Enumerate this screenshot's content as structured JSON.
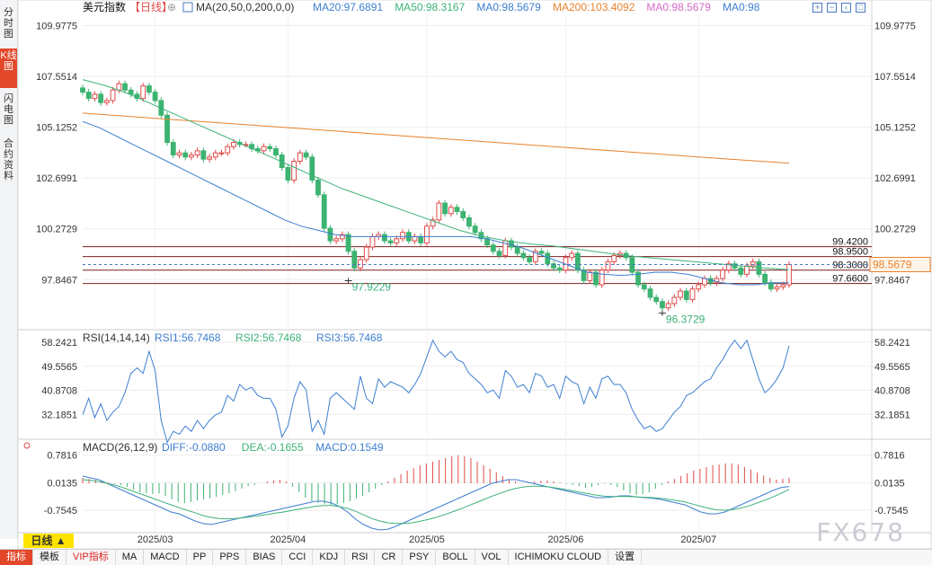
{
  "sidebar": {
    "items": [
      {
        "label": "分时图",
        "active": false
      },
      {
        "label": "K线图",
        "active": true
      },
      {
        "label": "闪电图",
        "active": false
      },
      {
        "label": "合约资料",
        "active": false
      }
    ]
  },
  "header": {
    "symbol": "美元指数",
    "period_tag": "【日线】",
    "ma_label": "MA(20,50,0,200,0,0)",
    "ma_values": [
      {
        "text": "MA20:97.6891",
        "color": "#3d7fd1"
      },
      {
        "text": "MA50:98.3167",
        "color": "#3db37a"
      },
      {
        "text": "MA0:98.5679",
        "color": "#3d7fd1"
      },
      {
        "text": "MA200:103.4092",
        "color": "#e8822e"
      },
      {
        "text": "MA0:98.5679",
        "color": "#d56ac5"
      },
      {
        "text": "MA0:98",
        "color": "#3d7fd1"
      }
    ]
  },
  "rsi_header": {
    "label": "RSI(14,14,14)",
    "values": [
      {
        "text": "RSI1:56.7468",
        "color": "#3d7fd1"
      },
      {
        "text": "RSI2:56.7468",
        "color": "#3db37a"
      },
      {
        "text": "RSI3:56.7468",
        "color": "#3d7fd1"
      }
    ]
  },
  "macd_header": {
    "label": "MACD(26,12,9)",
    "values": [
      {
        "text": "DIFF:-0.0880",
        "color": "#3d7fd1"
      },
      {
        "text": "DEA:-0.1655",
        "color": "#3db37a"
      },
      {
        "text": "MACD:0.1549",
        "color": "#3d7fd1"
      }
    ]
  },
  "chart_data": {
    "type": "candlestick",
    "price_ticks": [
      "109.9775",
      "107.5514",
      "105.1252",
      "102.6991",
      "100.2729",
      "97.8467"
    ],
    "price_range": [
      95.5,
      110.6
    ],
    "rsi_ticks": [
      "58.2421",
      "49.5565",
      "40.8708",
      "32.1851"
    ],
    "rsi_range": [
      23.5,
      62.5
    ],
    "macd_ticks": [
      "0.7816",
      "0.0135",
      "-0.7545"
    ],
    "macd_range": [
      -1.35,
      1.2
    ],
    "x_labels": [
      {
        "text": "2025/03",
        "index": 12
      },
      {
        "text": "2025/04",
        "index": 34
      },
      {
        "text": "2025/05",
        "index": 57
      },
      {
        "text": "2025/06",
        "index": 80
      },
      {
        "text": "2025/07",
        "index": 102
      }
    ],
    "current_price": "98.5679",
    "hlines": [
      {
        "value": 99.42,
        "label": "99.4200"
      },
      {
        "value": 98.95,
        "label": "98.9500"
      },
      {
        "value": 98.3,
        "label": "98.3000"
      },
      {
        "value": 97.66,
        "label": "97.6600"
      }
    ],
    "annotations": [
      {
        "text": "97.9229",
        "index": 44,
        "value": 97.9229
      },
      {
        "text": "96.3729",
        "index": 96,
        "value": 96.3729
      }
    ],
    "closes": [
      106.8,
      106.5,
      106.7,
      106.3,
      106.4,
      106.9,
      107.2,
      106.9,
      106.7,
      106.5,
      107.1,
      106.8,
      106.4,
      105.7,
      104.4,
      103.8,
      103.9,
      103.7,
      103.8,
      104.0,
      103.6,
      103.7,
      103.9,
      103.9,
      104.2,
      104.4,
      104.3,
      104.3,
      104.1,
      104.0,
      104.2,
      104.1,
      103.8,
      103.2,
      102.6,
      103.5,
      103.9,
      103.7,
      102.6,
      101.9,
      100.3,
      99.7,
      99.8,
      100.0,
      99.2,
      98.4,
      98.8,
      99.4,
      99.9,
      100.0,
      99.7,
      99.6,
      99.8,
      100.1,
      99.7,
      99.9,
      99.6,
      100.4,
      100.7,
      101.5,
      101.0,
      101.3,
      101.1,
      100.8,
      100.4,
      100.1,
      99.8,
      99.5,
      99.2,
      99.0,
      99.7,
      99.4,
      99.1,
      98.9,
      98.7,
      99.2,
      99.1,
      98.6,
      98.4,
      98.3,
      98.9,
      99.1,
      98.3,
      97.8,
      98.2,
      97.6,
      98.3,
      98.7,
      99.0,
      99.1,
      98.9,
      98.2,
      97.6,
      97.4,
      97.0,
      96.8,
      96.5,
      96.7,
      97.0,
      97.3,
      96.9,
      97.4,
      97.6,
      97.9,
      97.7,
      97.9,
      98.3,
      98.6,
      98.4,
      98.1,
      98.5,
      98.7,
      98.1,
      97.7,
      97.4,
      97.5,
      97.6,
      98.57
    ],
    "ma20": [
      105.4,
      105.1,
      104.7,
      104.3,
      103.9,
      103.5,
      103.1,
      102.7,
      102.3,
      101.9,
      101.5,
      101.1,
      100.7,
      100.4,
      100.2,
      100.0,
      99.9,
      99.9,
      99.9,
      99.9,
      99.9,
      99.9,
      99.9,
      99.9,
      99.8,
      99.6,
      99.4,
      99.1,
      98.8,
      98.5,
      98.2,
      98.1,
      98.05,
      98.1,
      98.2,
      98.2,
      98.1,
      97.9,
      97.7,
      97.6,
      97.6,
      97.7,
      97.69
    ],
    "ma50": [
      107.4,
      107.1,
      106.7,
      106.2,
      105.7,
      105.2,
      104.7,
      104.2,
      103.7,
      103.2,
      102.7,
      102.2,
      101.8,
      101.4,
      101.0,
      100.6,
      100.2,
      99.9,
      99.7,
      99.55,
      99.45,
      99.3,
      99.15,
      99.0,
      98.9,
      98.8,
      98.7,
      98.6,
      98.5,
      98.4,
      98.32
    ],
    "ma200": [
      105.8,
      105.6,
      105.4,
      105.2,
      105.0,
      104.8,
      104.6,
      104.4,
      104.2,
      104.0,
      103.8,
      103.6,
      103.41
    ],
    "rsi": [
      32,
      38,
      31,
      36,
      30,
      33,
      35,
      40,
      47,
      49,
      47,
      55,
      48,
      30,
      22,
      26,
      25,
      28,
      26,
      30,
      27,
      30,
      32,
      33,
      39,
      37,
      43,
      41,
      42,
      39,
      38,
      38,
      34,
      24,
      28,
      38,
      44,
      41,
      26,
      30,
      25,
      38,
      40,
      38,
      36,
      34,
      46,
      38,
      36,
      45,
      42,
      44,
      43,
      42,
      40,
      43,
      47,
      53,
      59,
      55,
      53,
      55,
      52,
      51,
      47,
      45,
      43,
      40,
      41,
      38,
      48,
      46,
      42,
      43,
      40,
      47,
      46,
      42,
      43,
      38,
      46,
      44,
      43,
      36,
      42,
      38,
      45,
      46,
      43,
      43,
      40,
      34,
      30,
      27,
      28,
      26,
      27,
      30,
      33,
      35,
      39,
      40,
      42,
      44,
      45,
      49,
      52,
      56,
      59,
      56,
      59,
      52,
      45,
      40,
      42,
      45,
      49,
      57
    ],
    "macd_hist": [
      0.15,
      0.12,
      0.1,
      0.05,
      0.02,
      -0.02,
      -0.05,
      -0.1,
      -0.18,
      -0.25,
      -0.28,
      -0.3,
      -0.28,
      -0.35,
      -0.45,
      -0.52,
      -0.55,
      -0.52,
      -0.48,
      -0.45,
      -0.42,
      -0.38,
      -0.33,
      -0.28,
      -0.22,
      -0.15,
      -0.08,
      -0.05,
      0.0,
      0.05,
      0.08,
      0.1,
      0.05,
      -0.1,
      -0.25,
      -0.4,
      -0.5,
      -0.55,
      -0.58,
      -0.6,
      -0.58,
      -0.55,
      -0.5,
      -0.42,
      -0.35,
      -0.25,
      -0.15,
      -0.05,
      0.05,
      0.15,
      0.25,
      0.35,
      0.42,
      0.5,
      0.55,
      0.6,
      0.65,
      0.7,
      0.75,
      0.78,
      0.75,
      0.7,
      0.6,
      0.5,
      0.4,
      0.3,
      0.2,
      0.12,
      0.05,
      0.0,
      0.02,
      0.05,
      0.07,
      0.08,
      0.05,
      0.02,
      -0.02,
      -0.05,
      -0.08,
      -0.12,
      -0.1,
      -0.05,
      -0.02,
      -0.05,
      -0.1,
      -0.2,
      -0.28,
      -0.32,
      -0.3,
      -0.25,
      -0.15,
      -0.05,
      0.05,
      0.12,
      0.2,
      0.28,
      0.35,
      0.4,
      0.45,
      0.5,
      0.52,
      0.55,
      0.55,
      0.52,
      0.45,
      0.38,
      0.3,
      0.22,
      0.15,
      0.1,
      0.12,
      0.15
    ],
    "macd_diff": [
      0.2,
      0.15,
      0.1,
      0.0,
      -0.1,
      -0.2,
      -0.3,
      -0.4,
      -0.5,
      -0.6,
      -0.7,
      -0.8,
      -0.85,
      -0.95,
      -1.05,
      -1.12,
      -1.15,
      -1.1,
      -1.05,
      -1.0,
      -0.95,
      -0.9,
      -0.85,
      -0.8,
      -0.75,
      -0.7,
      -0.65,
      -0.6,
      -0.55,
      -0.5,
      -0.5,
      -0.55,
      -0.65,
      -0.8,
      -1.0,
      -1.15,
      -1.25,
      -1.3,
      -1.28,
      -1.2,
      -1.1,
      -1.0,
      -0.9,
      -0.8,
      -0.7,
      -0.6,
      -0.5,
      -0.4,
      -0.3,
      -0.2,
      -0.1,
      0.0,
      0.05,
      0.1,
      0.1,
      0.05,
      0.0,
      -0.05,
      -0.1,
      -0.15,
      -0.2,
      -0.25,
      -0.3,
      -0.35,
      -0.4,
      -0.4,
      -0.38,
      -0.35,
      -0.35,
      -0.38,
      -0.4,
      -0.42,
      -0.45,
      -0.5,
      -0.55,
      -0.6,
      -0.7,
      -0.8,
      -0.85,
      -0.85,
      -0.8,
      -0.7,
      -0.6,
      -0.5,
      -0.4,
      -0.3,
      -0.2,
      -0.12,
      -0.09
    ],
    "macd_dea": [
      0.1,
      0.08,
      0.05,
      0.0,
      -0.05,
      -0.12,
      -0.2,
      -0.28,
      -0.36,
      -0.44,
      -0.52,
      -0.6,
      -0.68,
      -0.75,
      -0.82,
      -0.9,
      -0.95,
      -0.98,
      -0.99,
      -0.98,
      -0.96,
      -0.93,
      -0.9,
      -0.87,
      -0.83,
      -0.8,
      -0.76,
      -0.72,
      -0.68,
      -0.64,
      -0.62,
      -0.62,
      -0.65,
      -0.7,
      -0.78,
      -0.88,
      -0.98,
      -1.05,
      -1.1,
      -1.12,
      -1.12,
      -1.1,
      -1.06,
      -1.01,
      -0.95,
      -0.88,
      -0.8,
      -0.72,
      -0.63,
      -0.54,
      -0.45,
      -0.36,
      -0.28,
      -0.2,
      -0.14,
      -0.1,
      -0.08,
      -0.08,
      -0.1,
      -0.13,
      -0.17,
      -0.21,
      -0.25,
      -0.29,
      -0.33,
      -0.36,
      -0.37,
      -0.37,
      -0.37,
      -0.38,
      -0.39,
      -0.4,
      -0.42,
      -0.45,
      -0.48,
      -0.52,
      -0.58,
      -0.64,
      -0.7,
      -0.74,
      -0.75,
      -0.73,
      -0.69,
      -0.63,
      -0.55,
      -0.47,
      -0.38,
      -0.28,
      -0.17
    ]
  },
  "toolbar": {
    "period_button": "日线 ▲",
    "items": [
      "指标",
      "模板",
      "VIP指标",
      "MA",
      "MACD",
      "PP",
      "PPS",
      "BIAS",
      "CCI",
      "KDJ",
      "RSI",
      "CR",
      "PSY",
      "BOLL",
      "VOL",
      "ICHIMOKU CLOUD",
      "设置"
    ]
  },
  "watermark": "FX678",
  "colors": {
    "up": "#e24a4a",
    "down": "#3cb371",
    "ma20": "#3d7fd1",
    "ma50": "#3db37a",
    "ma200": "#e8822e",
    "grid": "#eeeeee"
  }
}
